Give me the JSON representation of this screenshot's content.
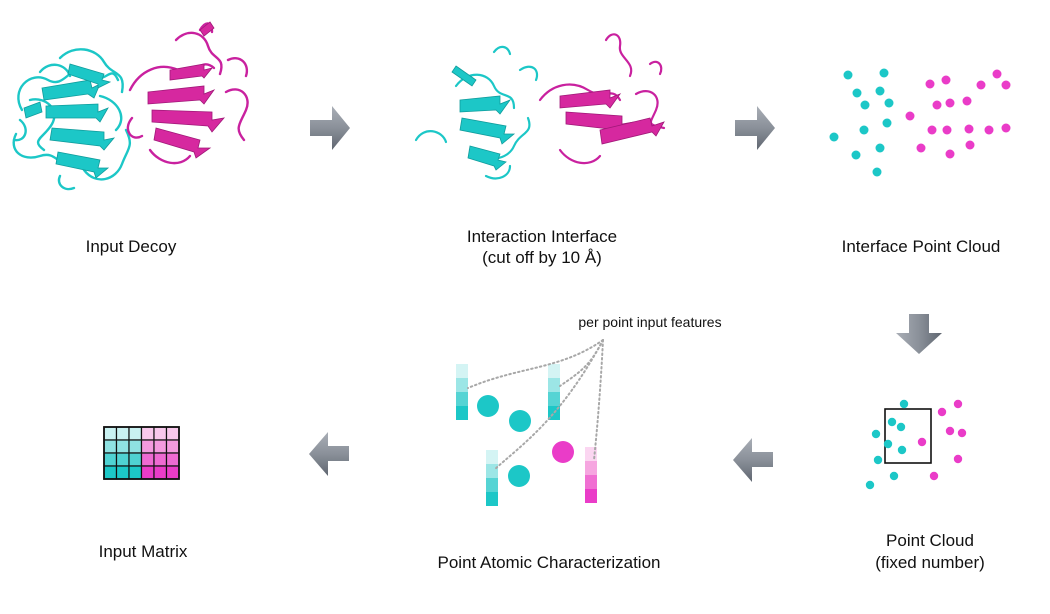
{
  "colors": {
    "cyan": "#1cc7c7",
    "magenta": "#ea3cc8",
    "arrow": "#7f8691",
    "dotted": "#a8a8a8"
  },
  "labels": {
    "input_decoy": "Input Decoy",
    "interaction_interface_line1": "Interaction Interface",
    "interaction_interface_line2": "(cut off by 10 Å)",
    "interface_point_cloud": "Interface Point Cloud",
    "point_cloud_line1": "Point Cloud",
    "point_cloud_line2": "(fixed number)",
    "point_atomic_characterization": "Point Atomic Characterization",
    "input_matrix": "Input Matrix",
    "per_point_features": "per point input features"
  },
  "icons": {
    "arrows": [
      "right-arrow-icon",
      "right-arrow-icon",
      "down-arrow-icon",
      "left-arrow-icon",
      "left-arrow-icon"
    ]
  },
  "matrix": {
    "rows": 4,
    "cols": 6,
    "cyan_cols": 3
  }
}
